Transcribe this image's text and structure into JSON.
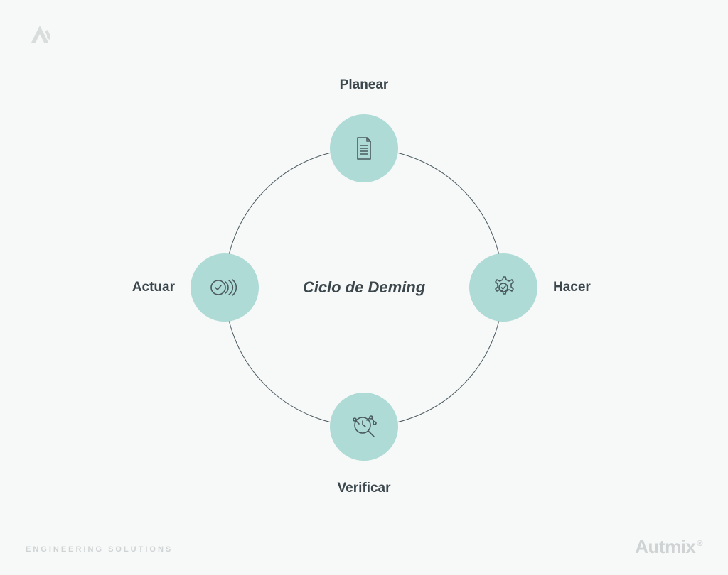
{
  "diagram": {
    "type": "cycle",
    "title": "Ciclo de Deming",
    "title_fontsize": 22,
    "title_color": "#3b474c",
    "ring_radius": 196,
    "ring_stroke": "#4a5a5f",
    "ring_stroke_width": 1,
    "node_radius": 48,
    "node_fill": "#aedbd5",
    "icon_stroke": "#4a5a5f",
    "label_color": "#3b474c",
    "label_fontsize": 19,
    "background_color": "#f7f8f8",
    "nodes": [
      {
        "key": "plan",
        "label": "Planear",
        "angle_deg": 270,
        "icon": "document-icon",
        "label_pos": "top",
        "label_offset": 30
      },
      {
        "key": "do",
        "label": "Hacer",
        "angle_deg": 0,
        "icon": "gear-check-icon",
        "label_pos": "right",
        "label_offset": 22
      },
      {
        "key": "check",
        "label": "Verificar",
        "angle_deg": 90,
        "icon": "magnify-chart-icon",
        "label_pos": "bottom",
        "label_offset": 28
      },
      {
        "key": "act",
        "label": "Actuar",
        "angle_deg": 180,
        "icon": "coins-check-icon",
        "label_pos": "left",
        "label_offset": 22
      }
    ]
  },
  "branding": {
    "logo_color": "#d9dddc",
    "tagline": "ENGINEERING SOLUTIONS",
    "brand": "Autmix",
    "footer_color": "#cfd3d4"
  }
}
